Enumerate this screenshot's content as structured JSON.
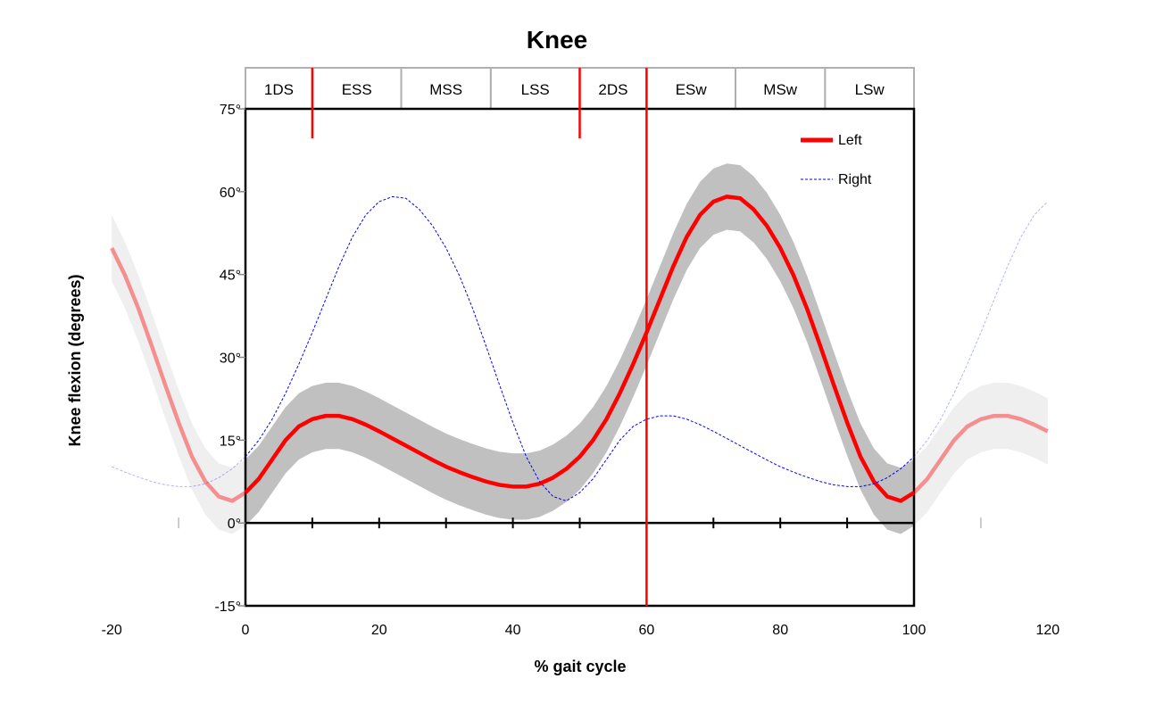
{
  "chart_data": {
    "type": "line",
    "title": "Knee",
    "xlabel": "% gait cycle",
    "ylabel": "Knee flexion (degrees)",
    "xlim": [
      -20,
      120
    ],
    "ylim": [
      -15,
      75
    ],
    "x_ticks": [
      -20,
      0,
      20,
      40,
      60,
      80,
      100,
      120
    ],
    "y_ticks": [
      {
        "value": 75,
        "label": "75°"
      },
      {
        "value": 60,
        "label": "60°"
      },
      {
        "value": 45,
        "label": "45°"
      },
      {
        "value": 30,
        "label": "30°"
      },
      {
        "value": 15,
        "label": "15°"
      },
      {
        "value": 0,
        "label": "0°"
      },
      {
        "value": -15,
        "label": "-15°"
      }
    ],
    "grid": false,
    "legend": {
      "placement": "top-right",
      "entries": [
        "Left",
        "Right"
      ]
    },
    "x": [
      0,
      2,
      4,
      6,
      8,
      10,
      12,
      14,
      16,
      18,
      20,
      22,
      24,
      26,
      28,
      30,
      32,
      34,
      36,
      38,
      40,
      42,
      44,
      46,
      48,
      50,
      52,
      54,
      56,
      58,
      60,
      62,
      64,
      66,
      68,
      70,
      72,
      74,
      76,
      78,
      80,
      82,
      84,
      86,
      88,
      90,
      92,
      94,
      96,
      98,
      100
    ],
    "series": [
      {
        "name": "Left",
        "color": "#ff0000",
        "style": "solid",
        "values": [
          5.5,
          8,
          11.5,
          15,
          17.5,
          18.8,
          19.4,
          19.4,
          18.8,
          17.8,
          16.6,
          15.3,
          14,
          12.7,
          11.4,
          10.2,
          9.2,
          8.3,
          7.5,
          6.9,
          6.6,
          6.6,
          7.1,
          8.2,
          9.8,
          12,
          15,
          18.8,
          23.5,
          28.8,
          34.5,
          40.5,
          46.5,
          51.8,
          55.8,
          58.2,
          59.1,
          58.8,
          56.8,
          53.8,
          49.8,
          44.8,
          38.8,
          32,
          25,
          18.2,
          12,
          7.5,
          4.8,
          4,
          5.5
        ],
        "band_sd": 6,
        "band_color": "#c0c0c0"
      },
      {
        "name": "Right",
        "color": "#0000ff",
        "style": "dashed",
        "values": [
          12,
          15,
          18.8,
          23.5,
          28.8,
          34.5,
          40.5,
          46.5,
          51.8,
          55.8,
          58.2,
          59.1,
          58.8,
          56.8,
          53.8,
          49.8,
          44.8,
          38.8,
          32,
          25,
          18.2,
          12,
          7.5,
          4.8,
          4,
          5.5,
          8,
          11.5,
          15,
          17.5,
          18.8,
          19.4,
          19.4,
          18.8,
          17.8,
          16.6,
          15.3,
          14,
          12.7,
          11.4,
          10.2,
          9.2,
          8.3,
          7.5,
          6.9,
          6.6,
          6.6,
          7.1,
          8.2,
          9.8,
          12
        ]
      }
    ],
    "phases": [
      {
        "label": "1DS",
        "start": 0,
        "end": 10
      },
      {
        "label": "ESS",
        "start": 10,
        "end": 23.3
      },
      {
        "label": "MSS",
        "start": 23.3,
        "end": 36.7
      },
      {
        "label": "LSS",
        "start": 36.7,
        "end": 50
      },
      {
        "label": "2DS",
        "start": 50,
        "end": 60
      },
      {
        "label": "ESw",
        "start": 60,
        "end": 73.3
      },
      {
        "label": "MSw",
        "start": 73.3,
        "end": 86.7
      },
      {
        "label": "LSw",
        "start": 86.7,
        "end": 100
      }
    ],
    "event_markers": [
      {
        "x": 10,
        "type": "short",
        "color": "#ff0000"
      },
      {
        "x": 50,
        "type": "short",
        "color": "#ff0000"
      },
      {
        "x": 60,
        "type": "full",
        "color": "#ff0000"
      }
    ]
  }
}
